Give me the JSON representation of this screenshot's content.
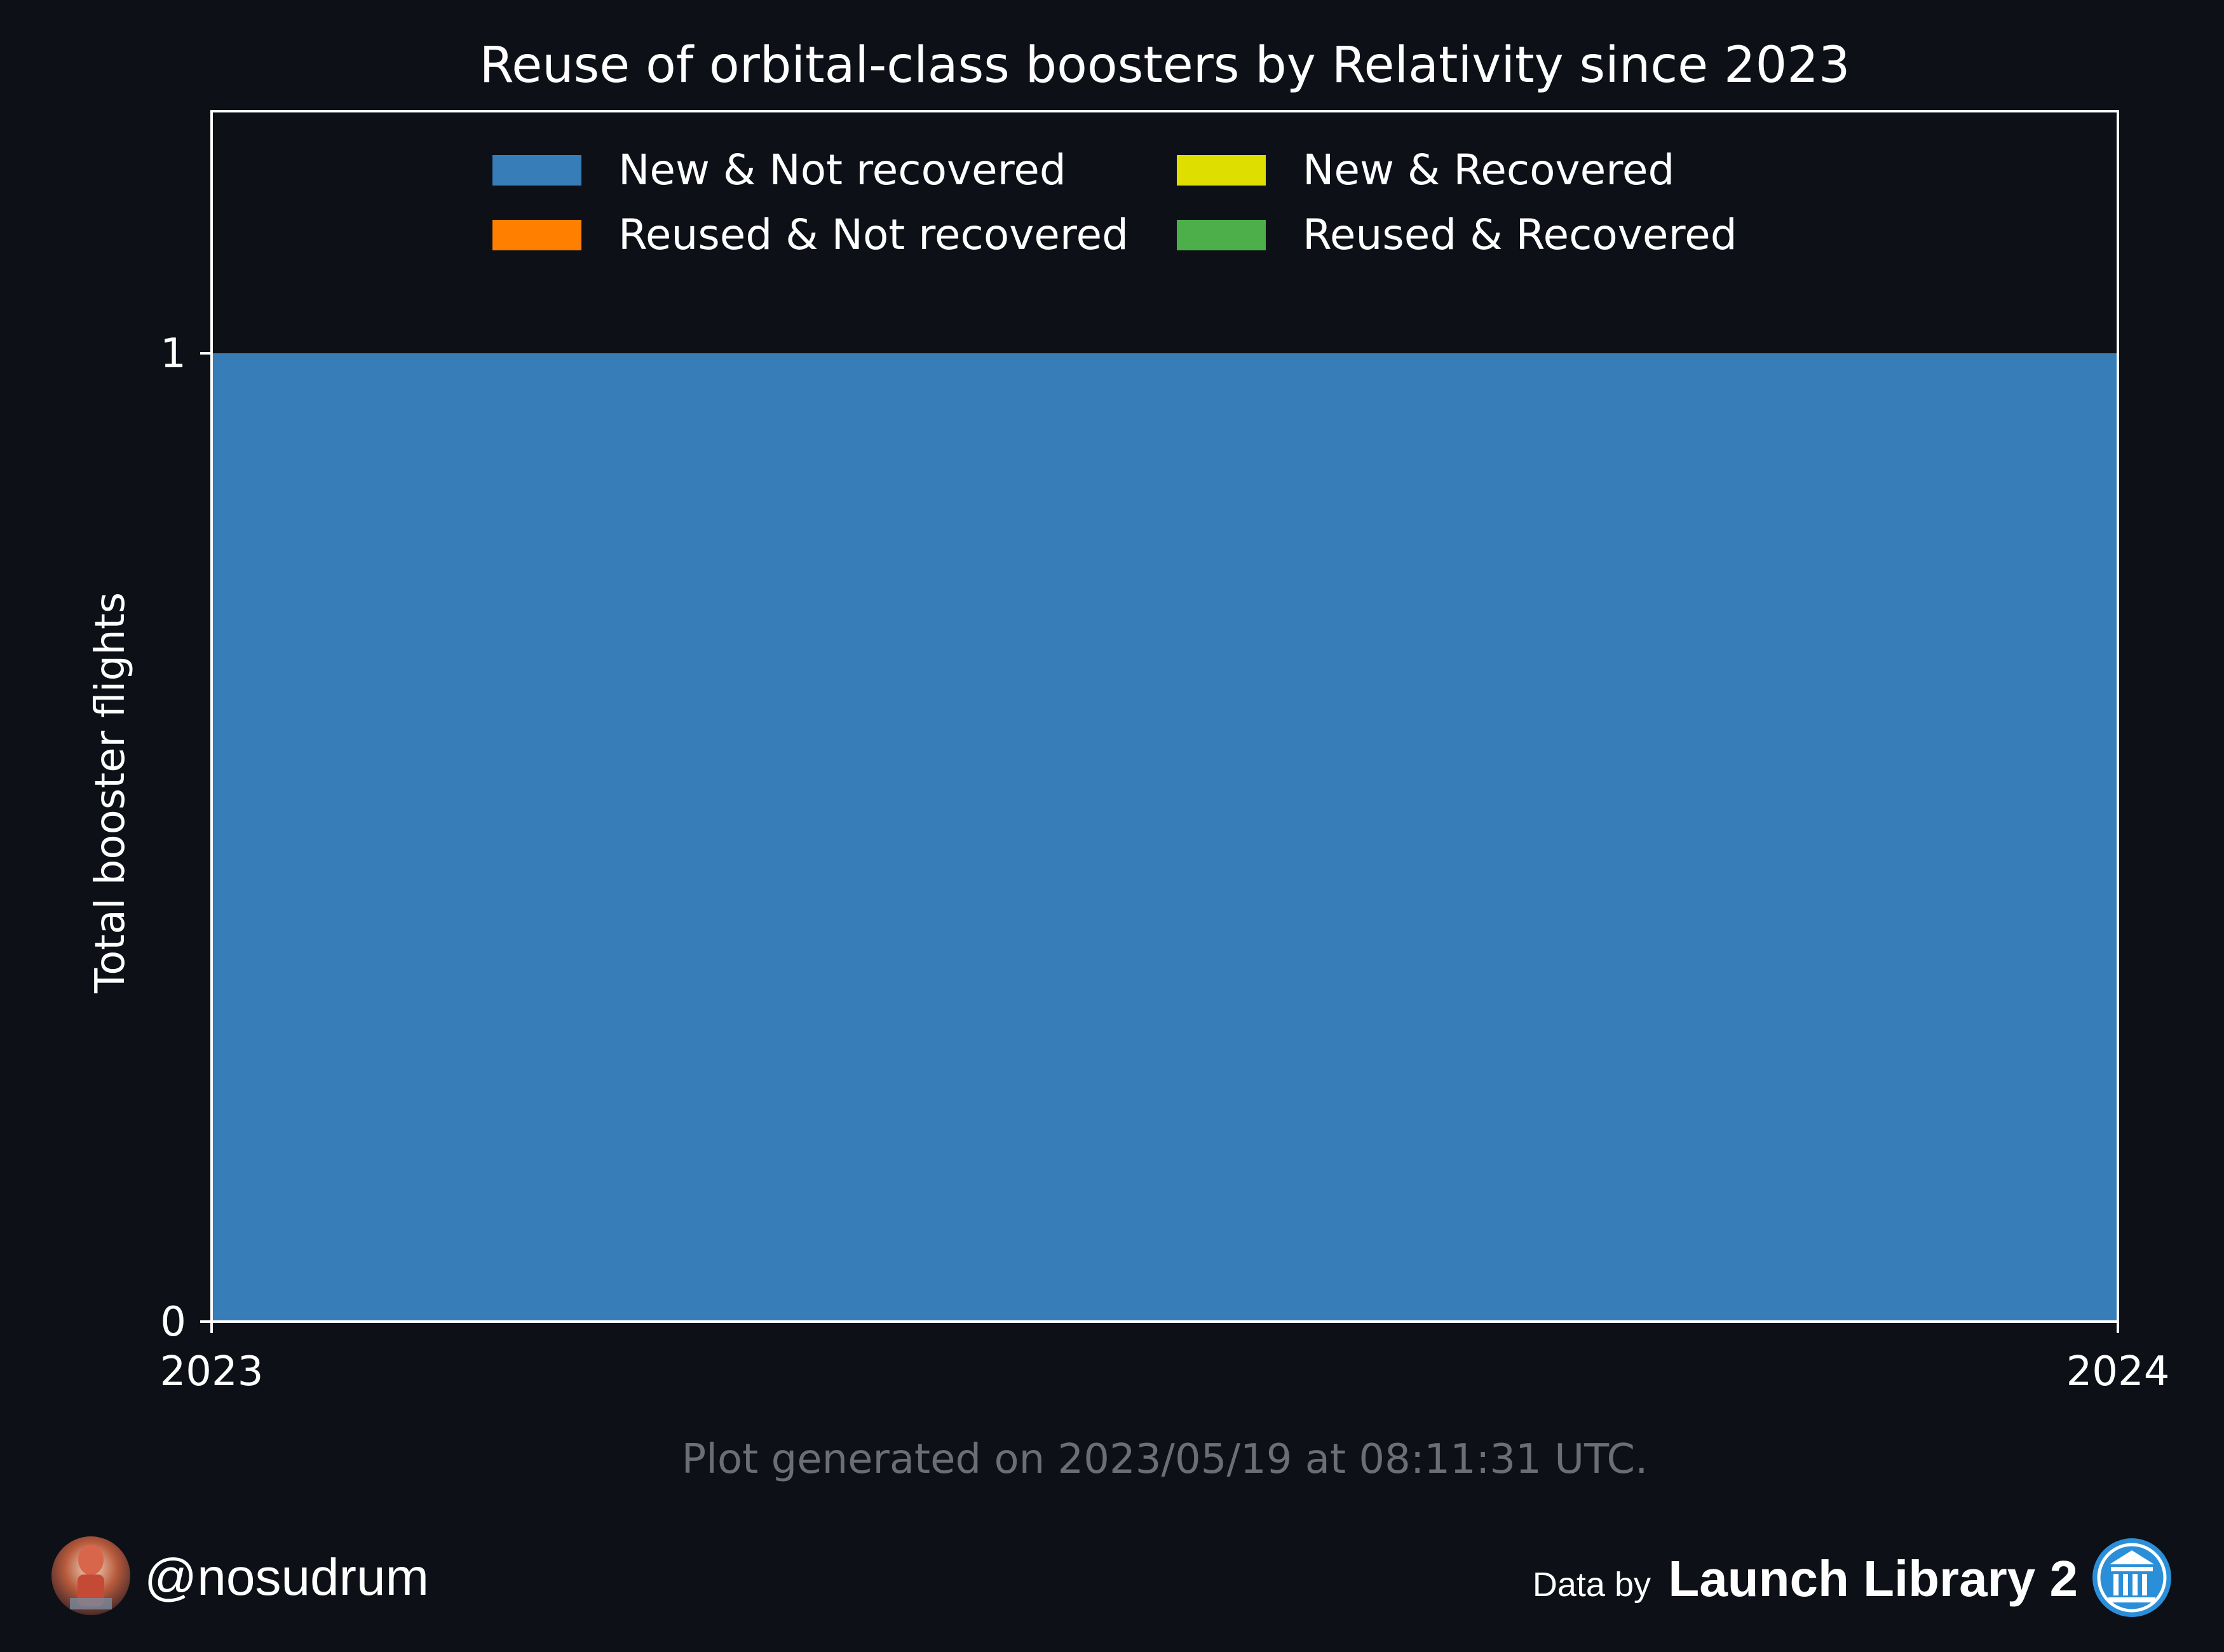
{
  "chart_data": {
    "type": "area",
    "title": "Reuse of orbital-class boosters by Relativity since 2023",
    "xlabel": "",
    "ylabel": "Total booster flights",
    "x": [
      2023,
      2024
    ],
    "xticks": [
      "2023",
      "2024"
    ],
    "yticks": [
      "0",
      "1"
    ],
    "xlim": [
      2023,
      2024
    ],
    "ylim": [
      0,
      1.25
    ],
    "grid": false,
    "stacked": true,
    "legend_position": "top-center",
    "series": [
      {
        "name": "New & Not recovered",
        "color": "#377eb8",
        "values": [
          1,
          1
        ]
      },
      {
        "name": "Reused & Not recovered",
        "color": "#ff7f00",
        "values": [
          0,
          0
        ]
      },
      {
        "name": "New & Recovered",
        "color": "#dede00",
        "values": [
          0,
          0
        ]
      },
      {
        "name": "Reused & Recovered",
        "color": "#4daf4a",
        "values": [
          0,
          0
        ]
      }
    ]
  },
  "footer": {
    "generated_note": "Plot generated on 2023/05/19 at 08:11:31 UTC.",
    "handle": "@nosudrum",
    "credit_prefix": "Data by",
    "credit_name": "Launch Library 2"
  },
  "icons": {
    "avatar": "astronaut-avatar-icon",
    "credit": "launch-library-institution-icon"
  },
  "colors": {
    "background": "#0d1017",
    "axes": "#ffffff",
    "footnote": "#6b6e73",
    "credit_badge": "#2a8fd8"
  }
}
